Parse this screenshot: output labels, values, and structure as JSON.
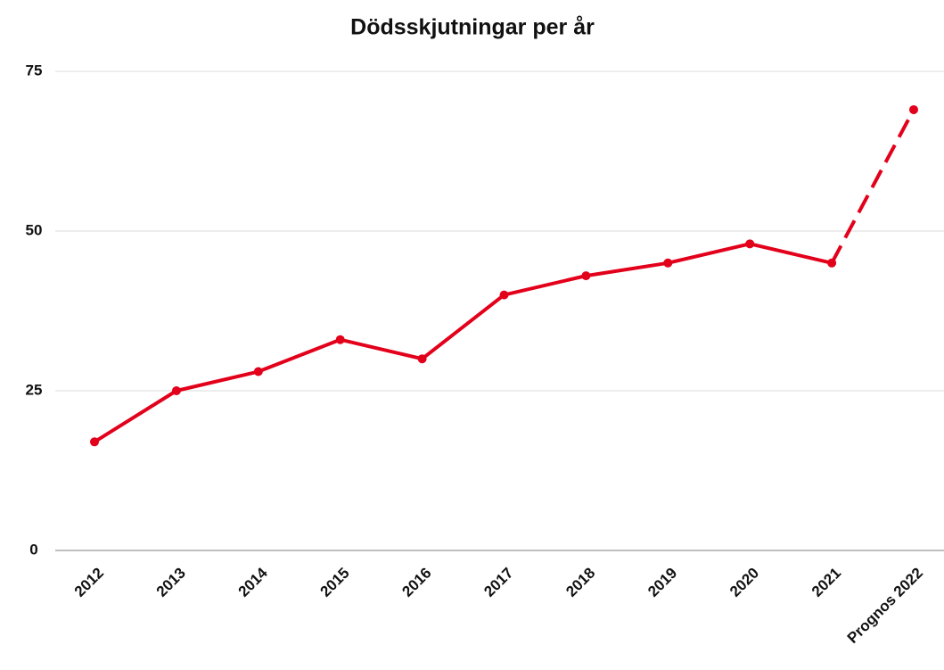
{
  "chart_data": {
    "type": "line",
    "title": "Dödsskjutningar per år",
    "categories": [
      "2012",
      "2013",
      "2014",
      "2015",
      "2016",
      "2017",
      "2018",
      "2019",
      "2020",
      "2021",
      "Prognos 2022"
    ],
    "values": [
      17,
      25,
      28,
      33,
      30,
      40,
      43,
      45,
      48,
      45,
      69
    ],
    "dashed": [
      false,
      false,
      false,
      false,
      false,
      false,
      false,
      false,
      false,
      false,
      true
    ],
    "color": "#e3001b",
    "ylim": [
      0,
      75
    ],
    "yticks": [
      0,
      25,
      50,
      75
    ],
    "grid": true
  }
}
